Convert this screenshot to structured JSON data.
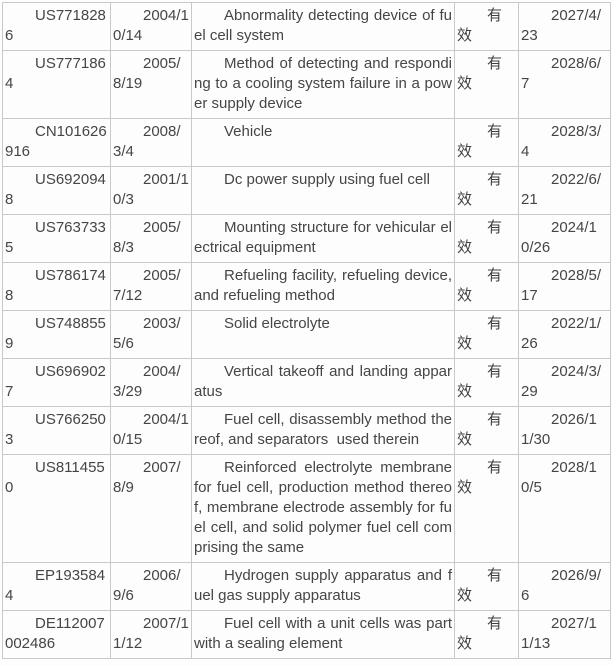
{
  "colors": {
    "page_background": "#fdfdfd",
    "table_border": "#c9c9c9",
    "text": "#454545",
    "status_text": "#3f3f3f"
  },
  "chart_data": {
    "type": "table",
    "columns": [
      "patent_number",
      "filing_date",
      "title",
      "legal_status",
      "expiry_date"
    ],
    "legend": "no header row visible; columns are patent number, filing date, invention title, legal status, expiry date",
    "rows": [
      {
        "patent_number": "US7718286",
        "filing_date": "2004/10/14",
        "title": "Abnormality detecting device of fuel cell system",
        "legal_status": "有效",
        "expiry_date": "2027/4/23"
      },
      {
        "patent_number": "US7771864",
        "filing_date": "2005/8/19",
        "title": "Method of detecting and responding to a cooling system failure in a power supply device",
        "legal_status": "有效",
        "expiry_date": "2028/6/7"
      },
      {
        "patent_number": "CN101626916",
        "filing_date": "2008/3/4",
        "title": "Vehicle",
        "legal_status": "有效",
        "expiry_date": "2028/3/4"
      },
      {
        "patent_number": "US6920948",
        "filing_date": "2001/10/3",
        "title": "Dc power supply using fuel cell",
        "legal_status": "有效",
        "expiry_date": "2022/6/21"
      },
      {
        "patent_number": "US7637335",
        "filing_date": "2005/8/3",
        "title": "Mounting structure for vehicular electrical equipment",
        "legal_status": "有效",
        "expiry_date": "2024/10/26"
      },
      {
        "patent_number": "US7861748",
        "filing_date": "2005/7/12",
        "title": "Refueling facility, refueling device, and refueling method",
        "legal_status": "有效",
        "expiry_date": "2028/5/17"
      },
      {
        "patent_number": "US7488559",
        "filing_date": "2003/5/6",
        "title": "Solid electrolyte",
        "legal_status": "有效",
        "expiry_date": "2022/1/26"
      },
      {
        "patent_number": "US6969027",
        "filing_date": "2004/3/29",
        "title": "Vertical takeoff and landing apparatus",
        "legal_status": "有效",
        "expiry_date": "2024/3/29"
      },
      {
        "patent_number": "US7662503",
        "filing_date": "2004/10/15",
        "title": "Fuel cell, disassembly method thereof, and separators  used therein",
        "legal_status": "有效",
        "expiry_date": "2026/11/30"
      },
      {
        "patent_number": "US8114550",
        "filing_date": "2007/8/9",
        "title": "Reinforced electrolyte membrane for fuel cell, production method thereof, membrane electrode assembly for fuel cell, and solid polymer fuel cell comprising the same",
        "legal_status": "有效",
        "expiry_date": "2028/10/5"
      },
      {
        "patent_number": "EP1935844",
        "filing_date": "2006/9/6",
        "title": "Hydrogen supply apparatus and fuel gas supply apparatus",
        "legal_status": "有效",
        "expiry_date": "2026/9/6"
      },
      {
        "patent_number": "DE112007002486",
        "filing_date": "2007/11/12",
        "title": "Fuel cell with a unit cells was part with a sealing element",
        "legal_status": "有效",
        "expiry_date": "2027/11/13"
      }
    ]
  }
}
